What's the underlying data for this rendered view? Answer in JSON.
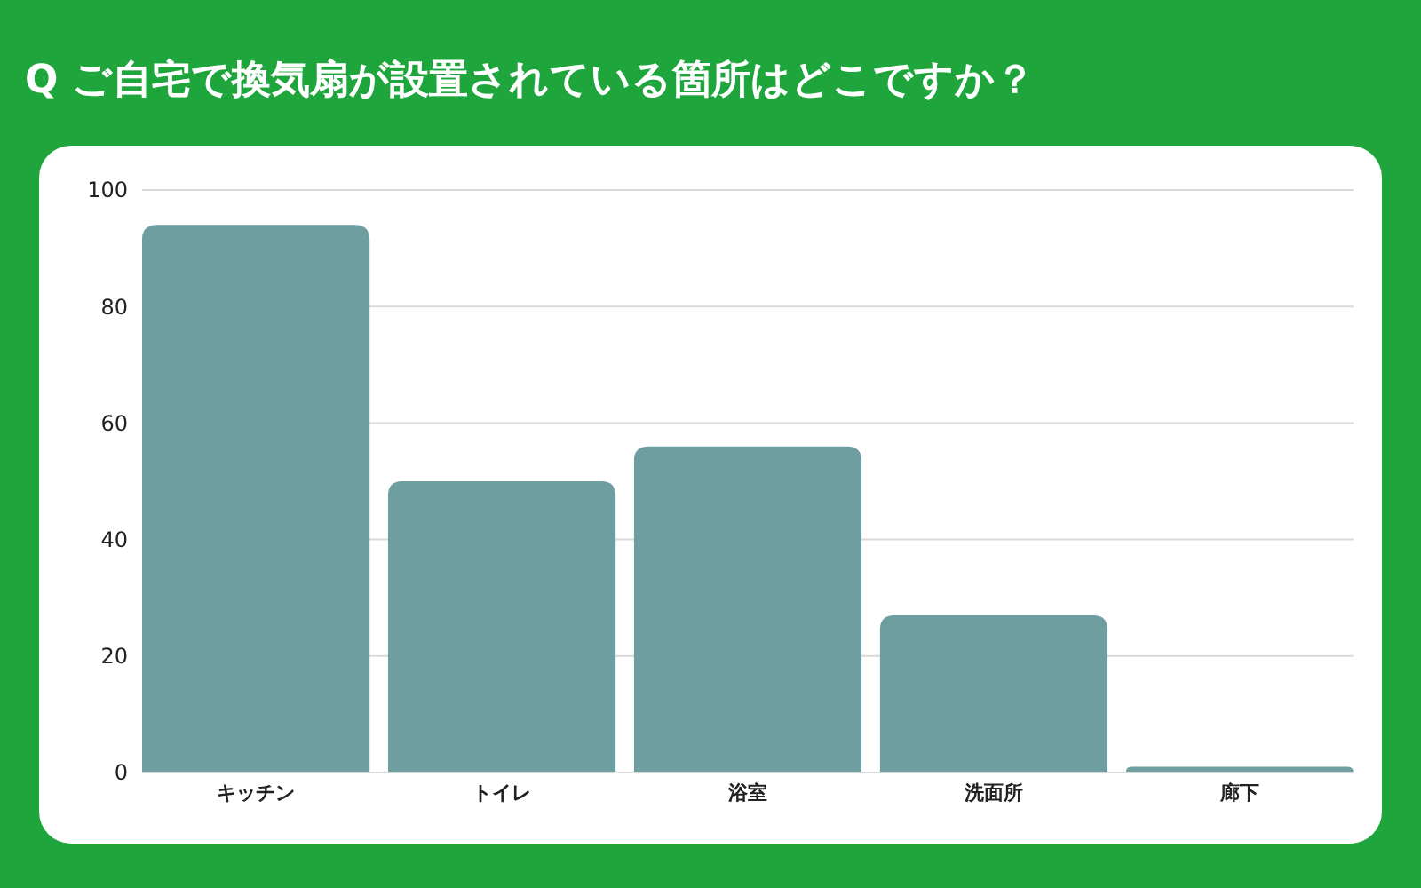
{
  "chart_data": {
    "type": "bar",
    "title": "Q ご自宅で換気扇が設置されている箇所はどこですか？",
    "categories": [
      "キッチン",
      "トイレ",
      "浴室",
      "洗面所",
      "廊下"
    ],
    "values": [
      94,
      50,
      56,
      27,
      1
    ],
    "color": "#6e9ea0",
    "ylim": [
      0,
      100
    ],
    "yticks": [
      0,
      20,
      40,
      60,
      80,
      100
    ],
    "grid": "y"
  }
}
